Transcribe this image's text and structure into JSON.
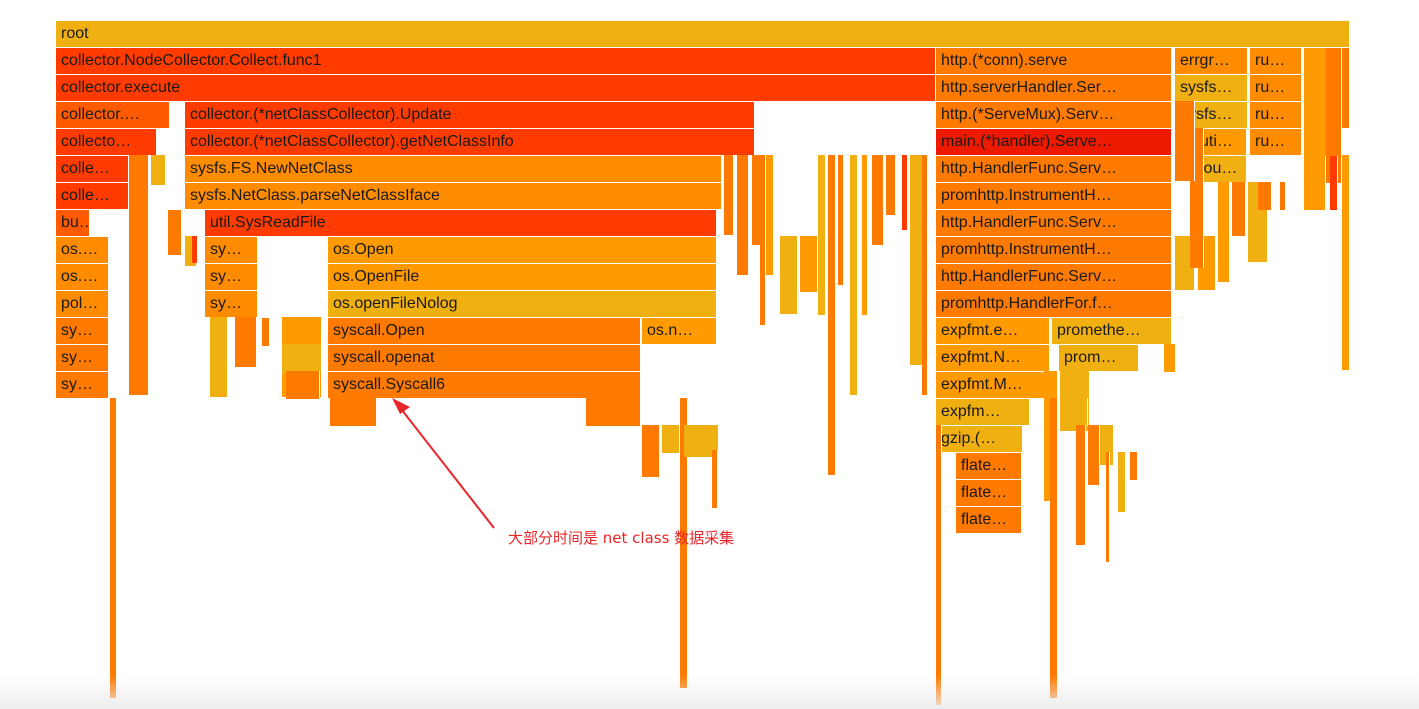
{
  "chart_data": {
    "type": "flamegraph",
    "frames": [
      {
        "label": "root",
        "depth": 0,
        "start": 0,
        "width": 1294,
        "color": "#f0b012"
      },
      {
        "label": "collector.NodeCollector.Collect.func1",
        "depth": 1,
        "start": 0,
        "width": 880,
        "color": "#ff3b00"
      },
      {
        "label": "http.(*conn).serve",
        "depth": 1,
        "start": 880,
        "width": 236,
        "color": "#ff7a00"
      },
      {
        "label": "errgr…",
        "depth": 1,
        "start": 1119,
        "width": 73,
        "color": "#ff8c00"
      },
      {
        "label": "ru…",
        "depth": 1,
        "start": 1194,
        "width": 52,
        "color": "#ff8c00"
      },
      {
        "label": "collector.execute",
        "depth": 2,
        "start": 0,
        "width": 880,
        "color": "#ff3b00"
      },
      {
        "label": "http.serverHandler.Ser…",
        "depth": 2,
        "start": 880,
        "width": 236,
        "color": "#ff7a00"
      },
      {
        "label": "sysfs…",
        "depth": 2,
        "start": 1119,
        "width": 73,
        "color": "#f0b012"
      },
      {
        "label": "ru…",
        "depth": 2,
        "start": 1194,
        "width": 52,
        "color": "#ff8c00"
      },
      {
        "label": "collector.…",
        "depth": 3,
        "start": 0,
        "width": 114,
        "color": "#ff5a00"
      },
      {
        "label": "collector.(*netClassCollector).Update",
        "depth": 3,
        "start": 129,
        "width": 570,
        "color": "#ff3b00"
      },
      {
        "label": "http.(*ServeMux).Serv…",
        "depth": 3,
        "start": 880,
        "width": 236,
        "color": "#ff7a00"
      },
      {
        "label": "sysfs…",
        "depth": 3,
        "start": 1119,
        "width": 73,
        "color": "#f0b012"
      },
      {
        "label": "ru…",
        "depth": 3,
        "start": 1194,
        "width": 52,
        "color": "#ff8c00"
      },
      {
        "label": "collecto…",
        "depth": 4,
        "start": 0,
        "width": 101,
        "color": "#ff3b00"
      },
      {
        "label": "collector.(*netClassCollector).getNetClassInfo",
        "depth": 4,
        "start": 129,
        "width": 570,
        "color": "#ff3b00"
      },
      {
        "label": "main.(*handler).Serve…",
        "depth": 4,
        "start": 880,
        "width": 236,
        "color": "#ee1a00"
      },
      {
        "label": "uti…",
        "depth": 4,
        "start": 1139,
        "width": 52,
        "color": "#ff9a00"
      },
      {
        "label": "ru…",
        "depth": 4,
        "start": 1194,
        "width": 52,
        "color": "#ff8c00"
      },
      {
        "label": "colle…",
        "depth": 5,
        "start": 0,
        "width": 73,
        "color": "#ff3b00"
      },
      {
        "label": "sysfs.FS.NewNetClass",
        "depth": 5,
        "start": 129,
        "width": 537,
        "color": "#ff8c00"
      },
      {
        "label": "http.HandlerFunc.Serv…",
        "depth": 5,
        "start": 880,
        "width": 236,
        "color": "#ff7a00"
      },
      {
        "label": "iou…",
        "depth": 5,
        "start": 1139,
        "width": 52,
        "color": "#f0b012"
      },
      {
        "label": "colle…",
        "depth": 6,
        "start": 0,
        "width": 73,
        "color": "#ff3b00"
      },
      {
        "label": "sysfs.NetClass.parseNetClassIface",
        "depth": 6,
        "start": 129,
        "width": 537,
        "color": "#ff8c00"
      },
      {
        "label": "promhttp.InstrumentH…",
        "depth": 6,
        "start": 880,
        "width": 236,
        "color": "#ff7a00"
      },
      {
        "label": "bu…",
        "depth": 7,
        "start": 0,
        "width": 34,
        "color": "#ff5a00"
      },
      {
        "label": "util.SysReadFile",
        "depth": 7,
        "start": 149,
        "width": 512,
        "color": "#ff3b00"
      },
      {
        "label": "http.HandlerFunc.Serv…",
        "depth": 7,
        "start": 880,
        "width": 236,
        "color": "#ff7a00"
      },
      {
        "label": "os.…",
        "depth": 8,
        "start": 0,
        "width": 53,
        "color": "#ff8c00"
      },
      {
        "label": "sy…",
        "depth": 8,
        "start": 149,
        "width": 53,
        "color": "#ff8c00"
      },
      {
        "label": "os.Open",
        "depth": 8,
        "start": 272,
        "width": 389,
        "color": "#ff9a00"
      },
      {
        "label": "promhttp.InstrumentH…",
        "depth": 8,
        "start": 880,
        "width": 236,
        "color": "#ff7a00"
      },
      {
        "label": "os.…",
        "depth": 9,
        "start": 0,
        "width": 53,
        "color": "#ff8c00"
      },
      {
        "label": "sy…",
        "depth": 9,
        "start": 149,
        "width": 53,
        "color": "#ff8c00"
      },
      {
        "label": "os.OpenFile",
        "depth": 9,
        "start": 272,
        "width": 389,
        "color": "#ff9a00"
      },
      {
        "label": "http.HandlerFunc.Serv…",
        "depth": 9,
        "start": 880,
        "width": 236,
        "color": "#ff7a00"
      },
      {
        "label": "pol…",
        "depth": 10,
        "start": 0,
        "width": 53,
        "color": "#ff8c00"
      },
      {
        "label": "sy…",
        "depth": 10,
        "start": 149,
        "width": 53,
        "color": "#ff8c00"
      },
      {
        "label": "os.openFileNolog",
        "depth": 10,
        "start": 272,
        "width": 389,
        "color": "#f0b012"
      },
      {
        "label": "promhttp.HandlerFor.f…",
        "depth": 10,
        "start": 880,
        "width": 236,
        "color": "#ff7a00"
      },
      {
        "label": "sy…",
        "depth": 11,
        "start": 0,
        "width": 53,
        "color": "#ff7a00"
      },
      {
        "label": "syscall.Open",
        "depth": 11,
        "start": 272,
        "width": 313,
        "color": "#ff7a00"
      },
      {
        "label": "os.n…",
        "depth": 11,
        "start": 586,
        "width": 75,
        "color": "#ff9a00"
      },
      {
        "label": "expfmt.e…",
        "depth": 11,
        "start": 880,
        "width": 114,
        "color": "#ff9a00"
      },
      {
        "label": "promethe…",
        "depth": 11,
        "start": 996,
        "width": 120,
        "color": "#f0b012"
      },
      {
        "label": "sy…",
        "depth": 12,
        "start": 0,
        "width": 53,
        "color": "#ff7a00"
      },
      {
        "label": "syscall.openat",
        "depth": 12,
        "start": 272,
        "width": 313,
        "color": "#ff7a00"
      },
      {
        "label": "expfmt.N…",
        "depth": 12,
        "start": 880,
        "width": 114,
        "color": "#ff9a00"
      },
      {
        "label": "prom…",
        "depth": 12,
        "start": 1003,
        "width": 80,
        "color": "#f0b012"
      },
      {
        "label": "sy…",
        "depth": 13,
        "start": 0,
        "width": 53,
        "color": "#ff7a00"
      },
      {
        "label": "syscall.Syscall6",
        "depth": 13,
        "start": 272,
        "width": 313,
        "color": "#ff7a00"
      },
      {
        "label": "expfmt.M…",
        "depth": 13,
        "start": 880,
        "width": 114,
        "color": "#ff9a00"
      },
      {
        "label": "expfm…",
        "depth": 14,
        "start": 880,
        "width": 94,
        "color": "#f0b012"
      },
      {
        "label": "gzip.(…",
        "depth": 15,
        "start": 880,
        "width": 87,
        "color": "#f0b012"
      },
      {
        "label": "flate…",
        "depth": 16,
        "start": 900,
        "width": 66,
        "color": "#ff7a00"
      },
      {
        "label": "flate…",
        "depth": 17,
        "start": 900,
        "width": 66,
        "color": "#ff7a00"
      },
      {
        "label": "flate…",
        "depth": 18,
        "start": 900,
        "width": 66,
        "color": "#ff7a00"
      }
    ],
    "annotation": "大部分时间是 net class 数据采集"
  },
  "colors": {
    "red": "#ff3b00",
    "dark_red": "#ee1a00",
    "orange": "#ff7a00",
    "light_orange": "#ff9a00",
    "amber": "#f0b012",
    "annotation": "#e8262a"
  }
}
